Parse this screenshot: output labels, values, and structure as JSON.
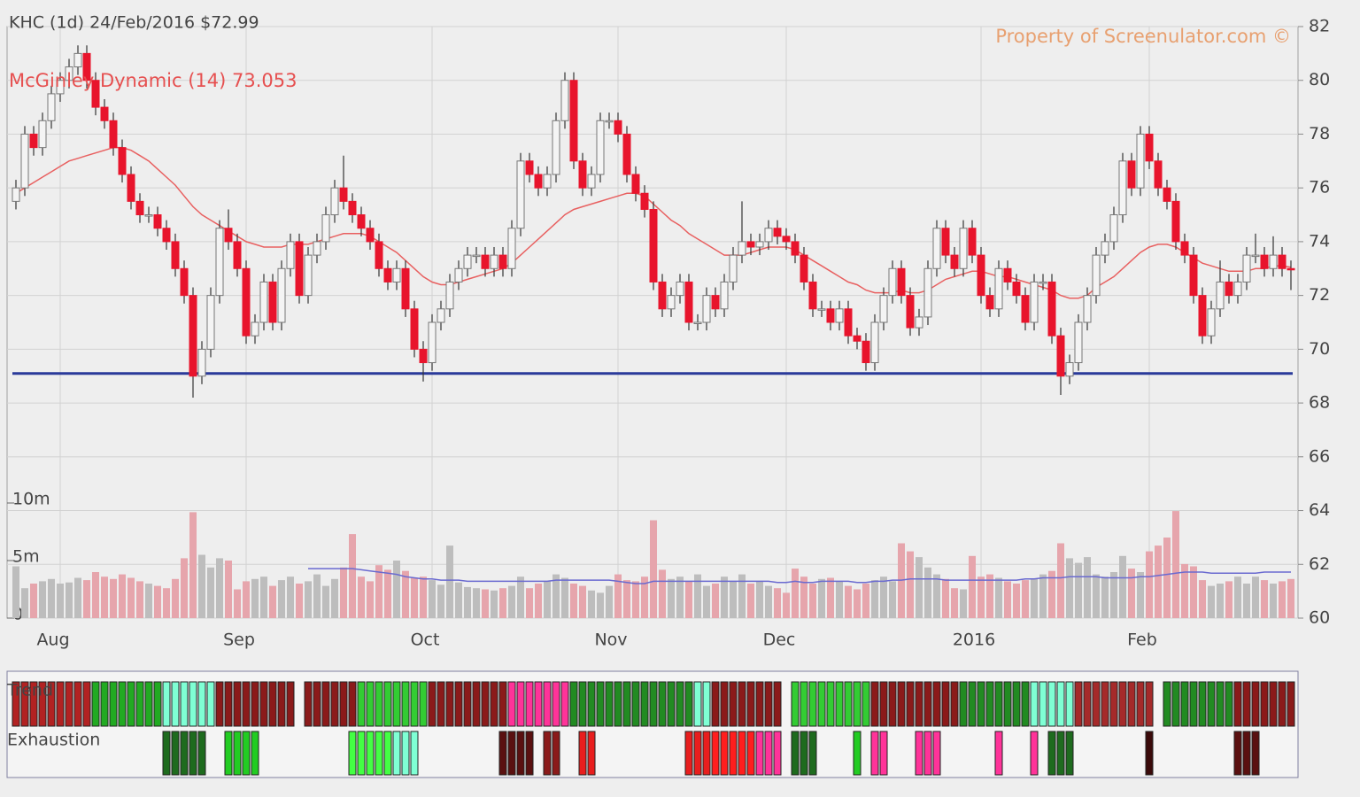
{
  "chart_data": {
    "type": "candlestick",
    "title": "KHC (1d) 24/Feb/2016 $72.99",
    "indicator_label": "McGinley Dynamic (14) 73.053",
    "watermark": "Property of Screenulator.com ©",
    "xlim": [
      -1,
      144.8
    ],
    "xticks": [
      {
        "value": 5,
        "label": "Aug"
      },
      {
        "value": 26,
        "label": "Sep"
      },
      {
        "value": 47,
        "label": "Oct"
      },
      {
        "value": 68,
        "label": "Nov"
      },
      {
        "value": 87,
        "label": "Dec"
      },
      {
        "value": 109,
        "label": "2016"
      },
      {
        "value": 128,
        "label": "Feb"
      }
    ],
    "ylim": [
      60,
      82
    ],
    "yticks": [
      60,
      62,
      64,
      66,
      68,
      70,
      72,
      74,
      76,
      78,
      80,
      82
    ],
    "grid": true,
    "up_color": "#f4f4f4",
    "down_color": "#e8142c",
    "support_level": 69.1,
    "support_color": "#2a3a9a",
    "open": [
      75.5,
      76,
      78,
      77.5,
      78.5,
      79.5,
      80,
      80.5,
      81,
      80,
      79,
      78.5,
      77.5,
      76.5,
      75.5,
      75,
      75,
      74.5,
      74,
      73,
      72,
      69,
      70,
      72,
      74.5,
      74,
      73,
      70.5,
      71,
      72.5,
      71,
      73,
      74,
      72,
      73.5,
      74,
      75,
      76,
      75.5,
      75,
      74.5,
      74,
      73,
      72.5,
      73,
      71.5,
      70,
      69.5,
      71,
      71.5,
      72.5,
      73,
      73.5,
      73.5,
      73,
      73.5,
      73,
      74.5,
      77,
      76.5,
      76,
      76.5,
      78.5,
      80,
      77,
      76,
      76.5,
      78.5,
      78.5,
      78,
      76.5,
      75.8,
      75.2,
      72.5,
      71.5,
      72,
      72.5,
      71,
      71,
      72,
      71.5,
      72.5,
      73.5,
      74,
      73.8,
      74,
      74.5,
      74.2,
      74,
      73.5,
      72.5,
      71.5,
      71.5,
      71,
      71.5,
      70.5,
      70.3,
      69.5,
      71,
      72,
      73,
      72,
      70.8,
      71.2,
      73,
      74.5,
      73.5,
      73,
      74.5,
      73.5,
      72,
      71.5,
      73,
      72.5,
      72,
      71,
      72.5,
      72.5,
      70.5,
      69,
      69.5,
      71,
      72,
      73.5,
      74,
      75,
      77,
      76,
      78,
      77,
      76,
      75.5,
      74,
      73.5,
      72,
      70.5,
      71.5,
      72.5,
      72,
      72.5,
      73.5,
      73.5,
      73,
      73.5,
      73
    ],
    "high": [
      76.3,
      78.3,
      78.3,
      78.8,
      79.8,
      80.3,
      80.8,
      81.3,
      81.3,
      80.3,
      79.3,
      78.8,
      77.8,
      76.8,
      75.8,
      75.3,
      75.3,
      74.8,
      74.3,
      73.3,
      72.3,
      70.3,
      72.3,
      74.8,
      75.2,
      74.3,
      73.3,
      71.3,
      72.8,
      72.8,
      73.3,
      74.3,
      74.3,
      73.8,
      74.3,
      75.3,
      76.3,
      77.2,
      75.8,
      75.3,
      74.8,
      74.3,
      73.3,
      73.3,
      73.3,
      71.8,
      70.3,
      71.3,
      71.8,
      72.8,
      73.3,
      73.8,
      73.8,
      73.8,
      73.8,
      73.8,
      74.8,
      77.3,
      77.3,
      76.8,
      76.8,
      78.8,
      80.3,
      80.3,
      77.3,
      76.8,
      78.8,
      78.8,
      78.8,
      78.3,
      76.8,
      76.1,
      75.5,
      72.8,
      72.3,
      72.8,
      72.8,
      71.3,
      72.3,
      72.3,
      72.8,
      73.8,
      75.5,
      74.3,
      74.3,
      74.8,
      74.8,
      74.5,
      74.3,
      73.8,
      72.8,
      71.8,
      71.8,
      71.8,
      71.8,
      70.8,
      70.6,
      71.3,
      72.3,
      73.3,
      73.3,
      72.3,
      71.5,
      73.3,
      74.8,
      74.8,
      73.8,
      74.8,
      74.8,
      73.8,
      72.3,
      73.3,
      73.3,
      72.8,
      72.3,
      72.8,
      72.8,
      72.8,
      70.8,
      69.8,
      71.3,
      72.3,
      73.8,
      74.3,
      75.3,
      77.3,
      77.3,
      78.3,
      78.3,
      77.3,
      76.3,
      75.8,
      74.3,
      73.8,
      72.3,
      71.8,
      73.3,
      72.8,
      72.8,
      73.8,
      74.3,
      73.8,
      74.2,
      73.8,
      73.3
    ],
    "low": [
      75.2,
      75.7,
      77.2,
      77.2,
      78.2,
      79.2,
      79.7,
      80.2,
      79.7,
      78.7,
      78.2,
      77.2,
      76.2,
      75.2,
      74.7,
      74.7,
      74.2,
      73.7,
      72.7,
      71.7,
      68.2,
      68.7,
      69.7,
      71.7,
      73.7,
      72.7,
      70.2,
      70.2,
      70.7,
      70.7,
      70.7,
      72.7,
      71.7,
      71.7,
      73.2,
      73.7,
      74.7,
      75.2,
      74.7,
      74.2,
      73.7,
      72.7,
      72.2,
      72.2,
      71.2,
      69.7,
      68.8,
      69.2,
      70.7,
      71.2,
      72.2,
      72.7,
      73.2,
      72.7,
      72.7,
      72.7,
      72.7,
      74.2,
      76.2,
      75.7,
      75.7,
      76.2,
      78.2,
      76.7,
      75.7,
      75.7,
      76.2,
      78.2,
      77.7,
      76.2,
      75.5,
      74.9,
      72.2,
      71.2,
      71.2,
      71.7,
      70.7,
      70.7,
      70.7,
      71.2,
      71.2,
      72.2,
      73.2,
      73.5,
      73.5,
      73.7,
      73.9,
      73.7,
      73.2,
      72.2,
      71.2,
      71.2,
      70.7,
      70.7,
      70.2,
      70,
      69.2,
      69.2,
      70.7,
      71.7,
      71.7,
      70.5,
      70.5,
      70.9,
      72.7,
      73.2,
      72.7,
      72.7,
      73.2,
      71.7,
      71.2,
      71.2,
      72.2,
      71.7,
      70.7,
      70.7,
      72.2,
      70.2,
      68.3,
      68.7,
      69.2,
      70.7,
      71.7,
      73.2,
      73.7,
      74.7,
      75.7,
      75.7,
      76.7,
      75.7,
      75.2,
      73.7,
      73.2,
      71.7,
      70.2,
      70.2,
      71.2,
      71.7,
      71.7,
      72.2,
      73.2,
      72.7,
      72.7,
      72.7,
      72.2
    ],
    "close": [
      76,
      78,
      77.5,
      78.5,
      79.5,
      80,
      80.5,
      81,
      80,
      79,
      78.5,
      77.5,
      76.5,
      75.5,
      75,
      75,
      74.5,
      74,
      73,
      72,
      69,
      70,
      72,
      74.5,
      74,
      73,
      70.5,
      71,
      72.5,
      71,
      73,
      74,
      72,
      73.5,
      74,
      75,
      76,
      75.5,
      75,
      74.5,
      74,
      73,
      72.5,
      73,
      71.5,
      70,
      69.5,
      71,
      71.5,
      72.5,
      73,
      73.5,
      73.5,
      73,
      73.5,
      73,
      74.5,
      77,
      76.5,
      76,
      76.5,
      78.5,
      80,
      77,
      76,
      76.5,
      78.5,
      78.5,
      78,
      76.5,
      75.8,
      75.2,
      72.5,
      71.5,
      72,
      72.5,
      71,
      71,
      72,
      71.5,
      72.5,
      73.5,
      74,
      73.8,
      74,
      74.5,
      74.2,
      74,
      73.5,
      72.5,
      71.5,
      71.5,
      71,
      71.5,
      70.5,
      70.3,
      69.5,
      71,
      72,
      73,
      72,
      70.8,
      71.2,
      73,
      74.5,
      73.5,
      73,
      74.5,
      73.5,
      72,
      71.5,
      73,
      72.5,
      72,
      71,
      72.5,
      72.5,
      70.5,
      69,
      69.5,
      71,
      72,
      73.5,
      74,
      75,
      77,
      76,
      78,
      77,
      76,
      75.5,
      74,
      73.5,
      72,
      70.5,
      71.5,
      72.5,
      72,
      72.5,
      73.5,
      73.5,
      73,
      73.5,
      73,
      72.99
    ],
    "mcginley_color": "#e86060",
    "mcginley": [
      75.8,
      76,
      76.2,
      76.4,
      76.6,
      76.8,
      77,
      77.1,
      77.2,
      77.3,
      77.4,
      77.5,
      77.5,
      77.4,
      77.2,
      77,
      76.7,
      76.4,
      76.1,
      75.7,
      75.3,
      75,
      74.8,
      74.6,
      74.4,
      74.2,
      74,
      73.9,
      73.8,
      73.8,
      73.8,
      73.9,
      73.9,
      73.9,
      74,
      74.1,
      74.2,
      74.3,
      74.3,
      74.3,
      74.2,
      74,
      73.8,
      73.6,
      73.3,
      73,
      72.7,
      72.5,
      72.4,
      72.4,
      72.5,
      72.6,
      72.7,
      72.8,
      72.9,
      73,
      73.2,
      73.5,
      73.8,
      74.1,
      74.4,
      74.7,
      75,
      75.2,
      75.3,
      75.4,
      75.5,
      75.6,
      75.7,
      75.8,
      75.8,
      75.7,
      75.4,
      75.1,
      74.8,
      74.6,
      74.3,
      74.1,
      73.9,
      73.7,
      73.5,
      73.5,
      73.5,
      73.6,
      73.7,
      73.8,
      73.8,
      73.8,
      73.7,
      73.5,
      73.3,
      73.1,
      72.9,
      72.7,
      72.5,
      72.4,
      72.2,
      72.1,
      72.1,
      72.1,
      72.2,
      72.1,
      72.1,
      72.2,
      72.4,
      72.6,
      72.7,
      72.8,
      72.9,
      72.9,
      72.8,
      72.7,
      72.7,
      72.6,
      72.5,
      72.4,
      72.3,
      72.2,
      72,
      71.9,
      71.9,
      72,
      72.3,
      72.5,
      72.7,
      73,
      73.3,
      73.6,
      73.8,
      73.9,
      73.9,
      73.8,
      73.6,
      73.4,
      73.2,
      73.1,
      73,
      72.9,
      72.9,
      72.9,
      73,
      73,
      73.1,
      73.1,
      73.053
    ],
    "volume_ylim": [
      0,
      10000000
    ],
    "volume_ticks": [
      0,
      {
        "value": 5000000,
        "label": "5m"
      },
      {
        "value": 10000000,
        "label": "10m"
      }
    ],
    "volume_up_color": "#bdbdbd",
    "volume_down_color": "#e6a5ac",
    "volume": [
      4500000,
      2600000,
      3000000,
      3200000,
      3400000,
      3000000,
      3100000,
      3500000,
      3300000,
      4000000,
      3600000,
      3400000,
      3800000,
      3500000,
      3200000,
      3000000,
      2800000,
      2600000,
      3400000,
      5200000,
      9200000,
      5500000,
      4400000,
      5200000,
      5000000,
      2500000,
      3200000,
      3400000,
      3600000,
      2800000,
      3300000,
      3600000,
      3000000,
      3200000,
      3800000,
      2800000,
      3400000,
      4400000,
      7300000,
      3600000,
      3200000,
      4600000,
      4200000,
      5000000,
      4100000,
      3500000,
      3600000,
      3300000,
      2900000,
      6300000,
      3100000,
      2700000,
      2600000,
      2500000,
      2400000,
      2600000,
      2800000,
      3600000,
      2600000,
      3000000,
      3200000,
      3800000,
      3500000,
      3000000,
      2800000,
      2400000,
      2200000,
      2800000,
      3800000,
      3300000,
      3200000,
      3600000,
      8500000,
      4200000,
      3400000,
      3600000,
      3200000,
      3800000,
      2800000,
      3000000,
      3600000,
      3200000,
      3800000,
      3000000,
      3200000,
      2800000,
      2600000,
      2200000,
      4300000,
      3600000,
      3000000,
      3400000,
      3500000,
      3200000,
      2800000,
      2500000,
      3000000,
      3300000,
      3600000,
      3200000,
      6500000,
      5800000,
      5300000,
      4400000,
      3800000,
      3400000,
      2600000,
      2500000,
      5400000,
      3600000,
      3800000,
      3500000,
      3200000,
      3000000,
      3300000,
      3400000,
      3800000,
      4100000,
      6500000,
      5200000,
      4800000,
      5300000,
      3800000,
      3600000,
      4000000,
      5400000,
      4300000,
      4000000,
      5800000,
      6300000,
      7000000,
      9300000,
      4700000,
      4500000,
      3300000,
      2800000,
      3000000,
      3200000,
      3600000,
      3000000,
      3600000,
      3300000,
      3000000,
      3200000,
      3400000
    ],
    "volume_ma_color": "#6a6ad0",
    "volume_ma": [
      null,
      null,
      null,
      null,
      null,
      null,
      null,
      null,
      null,
      null,
      null,
      null,
      null,
      null,
      null,
      null,
      null,
      null,
      null,
      null,
      null,
      null,
      null,
      null,
      null,
      null,
      null,
      null,
      null,
      null,
      null,
      null,
      null,
      4300000,
      4300000,
      4300000,
      4300000,
      4300000,
      4300000,
      4200000,
      4100000,
      4000000,
      3900000,
      3800000,
      3600000,
      3500000,
      3400000,
      3400000,
      3300000,
      3300000,
      3300000,
      3200000,
      3200000,
      3200000,
      3200000,
      3200000,
      3200000,
      3200000,
      3200000,
      3200000,
      3200000,
      3300000,
      3300000,
      3300000,
      3300000,
      3300000,
      3300000,
      3300000,
      3200000,
      3100000,
      3000000,
      3000000,
      3200000,
      3200000,
      3200000,
      3200000,
      3200000,
      3200000,
      3200000,
      3200000,
      3200000,
      3200000,
      3200000,
      3200000,
      3200000,
      3200000,
      3100000,
      3100000,
      3200000,
      3100000,
      3100000,
      3200000,
      3200000,
      3200000,
      3200000,
      3100000,
      3100000,
      3200000,
      3200000,
      3300000,
      3300000,
      3400000,
      3400000,
      3400000,
      3400000,
      3300000,
      3300000,
      3300000,
      3300000,
      3300000,
      3300000,
      3300000,
      3300000,
      3300000,
      3400000,
      3400000,
      3500000,
      3500000,
      3500000,
      3600000,
      3600000,
      3600000,
      3600000,
      3500000,
      3500000,
      3500000,
      3500000,
      3600000,
      3600000,
      3700000,
      3800000,
      3900000,
      4000000,
      4000000,
      4000000,
      3900000,
      3900000,
      3900000,
      3900000,
      3900000,
      3900000,
      4000000,
      4000000,
      4000000,
      4000000
    ],
    "trend_label": "Trend",
    "exhaustion_label": "Exhaustion",
    "trend": [
      {
        "from": 0,
        "to": 8,
        "color": "#b22222"
      },
      {
        "from": 9,
        "to": 16,
        "color": "#22aa22"
      },
      {
        "from": 17,
        "to": 22,
        "color": "#7fffd4"
      },
      {
        "from": 23,
        "to": 31,
        "color": "#8b1a1a"
      },
      {
        "from": 33,
        "to": 38,
        "color": "#8b1a1a"
      },
      {
        "from": 39,
        "to": 46,
        "color": "#33cc33"
      },
      {
        "from": 47,
        "to": 55,
        "color": "#8b1a1a"
      },
      {
        "from": 56,
        "to": 62,
        "color": "#ff3399"
      },
      {
        "from": 63,
        "to": 76,
        "color": "#228b22"
      },
      {
        "from": 77,
        "to": 78,
        "color": "#7fffd4"
      },
      {
        "from": 79,
        "to": 86,
        "color": "#8b1a1a"
      },
      {
        "from": 88,
        "to": 96,
        "color": "#33cc33"
      },
      {
        "from": 97,
        "to": 106,
        "color": "#8b1a1a"
      },
      {
        "from": 107,
        "to": 114,
        "color": "#228b22"
      },
      {
        "from": 115,
        "to": 119,
        "color": "#7fffd4"
      },
      {
        "from": 120,
        "to": 128,
        "color": "#a52a2a"
      },
      {
        "from": 130,
        "to": 137,
        "color": "#228b22"
      },
      {
        "from": 138,
        "to": 144,
        "color": "#8b1a1a"
      }
    ],
    "exhaustion": [
      {
        "from": 17,
        "to": 21,
        "color": "#1e6b1e"
      },
      {
        "from": 24,
        "to": 27,
        "color": "#22cc22"
      },
      {
        "from": 38,
        "to": 42,
        "color": "#44ff44"
      },
      {
        "from": 43,
        "to": 45,
        "color": "#7fffd4"
      },
      {
        "from": 55,
        "to": 58,
        "color": "#5a1010"
      },
      {
        "from": 60,
        "to": 61,
        "color": "#8b1a1a"
      },
      {
        "from": 64,
        "to": 65,
        "color": "#e81e1e"
      },
      {
        "from": 76,
        "to": 78,
        "color": "#e81e1e"
      },
      {
        "from": 79,
        "to": 83,
        "color": "#ff1e1e"
      },
      {
        "from": 84,
        "to": 86,
        "color": "#ff3399"
      },
      {
        "from": 88,
        "to": 90,
        "color": "#1e6b1e"
      },
      {
        "from": 95,
        "to": 95,
        "color": "#22cc22"
      },
      {
        "from": 97,
        "to": 98,
        "color": "#ff3399"
      },
      {
        "from": 102,
        "to": 104,
        "color": "#ff3399"
      },
      {
        "from": 111,
        "to": 111,
        "color": "#ff3399"
      },
      {
        "from": 115,
        "to": 115,
        "color": "#ff3399"
      },
      {
        "from": 117,
        "to": 119,
        "color": "#1e6b1e"
      },
      {
        "from": 128,
        "to": 128,
        "color": "#3a0a0a"
      },
      {
        "from": 138,
        "to": 140,
        "color": "#5a1010"
      }
    ]
  }
}
